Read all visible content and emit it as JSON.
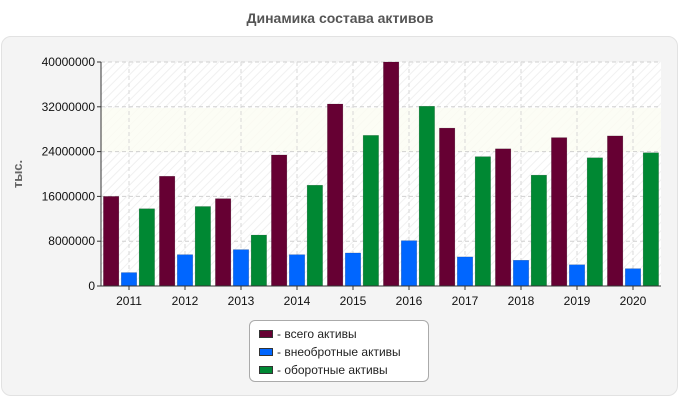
{
  "chart_data": {
    "type": "bar",
    "title": "Динамика состава активов",
    "ylabel": "тыс.",
    "xlabel": "",
    "categories": [
      "2011",
      "2012",
      "2013",
      "2014",
      "2015",
      "2016",
      "2017",
      "2018",
      "2019",
      "2020"
    ],
    "ylim": [
      0,
      40000000
    ],
    "yticks": [
      0,
      8000000,
      16000000,
      24000000,
      32000000,
      40000000
    ],
    "grid": true,
    "legend_position": "bottom",
    "series": [
      {
        "name": "- всего активы",
        "color": "#660033",
        "values": [
          16000000,
          19600000,
          15600000,
          23400000,
          32500000,
          40000000,
          28200000,
          24500000,
          26500000,
          26800000
        ]
      },
      {
        "name": "- внеобротные активы",
        "color": "#0066ff",
        "values": [
          2400000,
          5600000,
          6500000,
          5600000,
          5900000,
          8100000,
          5200000,
          4600000,
          3800000,
          3100000
        ]
      },
      {
        "name": "- оборотные активы",
        "color": "#008833",
        "values": [
          13800000,
          14200000,
          9100000,
          18000000,
          26900000,
          32100000,
          23100000,
          19800000,
          22900000,
          23800000
        ]
      }
    ]
  }
}
